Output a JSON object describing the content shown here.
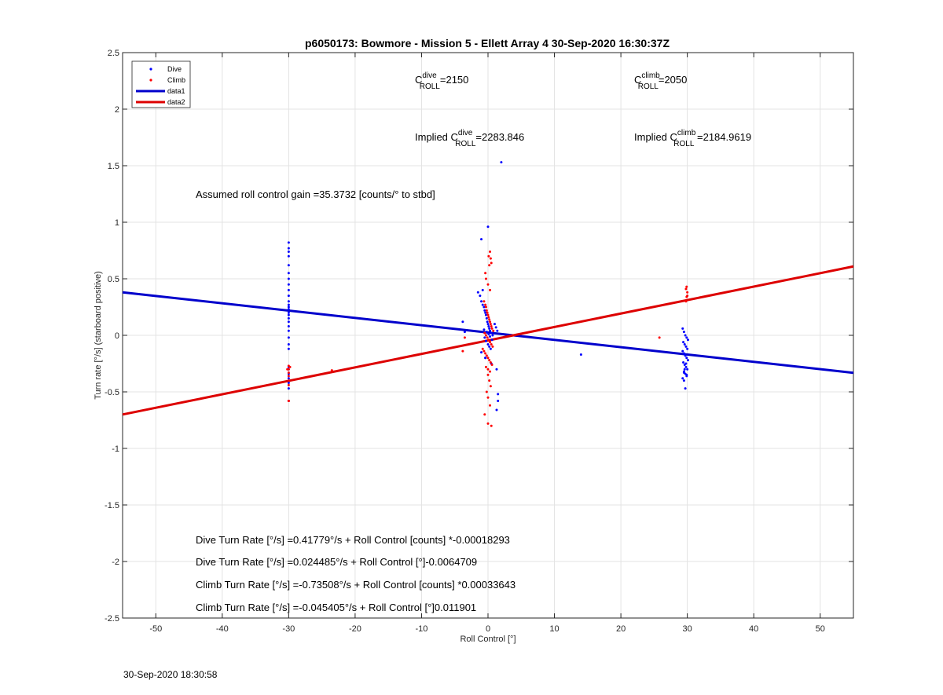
{
  "chart_data": {
    "type": "scatter",
    "title": "p6050173: Bowmore - Mission 5 - Ellett Array 4 30-Sep-2020 16:30:37Z",
    "xlabel": "Roll Control [°]",
    "ylabel": "Turn rate [°/s] (starboard positive)",
    "xlim": [
      -55,
      55
    ],
    "ylim": [
      -2.5,
      2.5
    ],
    "xticks": [
      -50,
      -40,
      -30,
      -20,
      -10,
      0,
      10,
      20,
      30,
      40,
      50
    ],
    "yticks": [
      -2.5,
      -2,
      -1.5,
      -1,
      -0.5,
      0,
      0.5,
      1,
      1.5,
      2,
      2.5
    ],
    "grid": true,
    "legend_position": "top-left",
    "legend": [
      "Dive",
      "Climb",
      "data1",
      "data2"
    ],
    "colors": {
      "dive": "#0000ff",
      "climb": "#ff0000",
      "data1": "#0000cc",
      "data2": "#dd0000"
    },
    "series": [
      {
        "name": "Dive",
        "kind": "points",
        "x": [
          -30,
          -30,
          -30,
          -30,
          -30,
          -30,
          -30,
          -30,
          -30,
          -30,
          -30,
          -30,
          -30,
          -30,
          -30,
          -30,
          -30,
          -30,
          -30,
          -30,
          -30,
          -30,
          -30,
          -30,
          -30,
          -30,
          -30,
          -30,
          -30,
          -30,
          -1.5,
          -1.2,
          -1,
          -0.8,
          -0.6,
          -0.5,
          -0.4,
          -0.3,
          -0.2,
          -0.1,
          0,
          0.1,
          0.2,
          0.3,
          0.5,
          0.7,
          -0.5,
          -0.3,
          0,
          0.2,
          0.4,
          -0.6,
          -0.2,
          0.1,
          0.3,
          0.6,
          1,
          1.2,
          1.4,
          -1,
          -0.4,
          0.5,
          1.3,
          1.5,
          1.5,
          1.3,
          -0.8,
          -0.4,
          -3.8,
          -3.5,
          -1,
          0,
          2,
          14,
          29.3,
          29.5,
          29.7,
          29.9,
          30.1,
          29.4,
          29.6,
          29.8,
          30,
          29.3,
          29.5,
          29.7,
          29.9,
          30.1,
          29.4,
          29.6,
          29.8,
          30,
          29.5,
          29.7,
          29.9,
          29.3,
          29.5,
          29.7,
          29.9,
          29.6,
          29.8,
          29.5
        ],
        "y": [
          0.82,
          0.77,
          0.74,
          0.7,
          0.62,
          0.55,
          0.5,
          0.45,
          0.4,
          0.35,
          0.3,
          0.27,
          0.25,
          0.23,
          0.2,
          0.18,
          0.15,
          0.12,
          0.08,
          0.04,
          -0.02,
          -0.08,
          -0.12,
          -0.28,
          -0.3,
          -0.34,
          -0.38,
          -0.42,
          -0.47,
          -0.58,
          0.38,
          0.35,
          0.3,
          0.27,
          0.25,
          0.22,
          0.2,
          0.18,
          0.15,
          0.12,
          0.1,
          0.08,
          0.06,
          0.04,
          0.02,
          0,
          -0.02,
          -0.05,
          -0.08,
          -0.1,
          -0.12,
          0.05,
          0.03,
          0.01,
          -0.01,
          -0.04,
          0.1,
          0.07,
          0.04,
          -0.15,
          -0.2,
          -0.25,
          -0.3,
          -0.52,
          -0.58,
          -0.66,
          0.4,
          -0.2,
          0.12,
          0.03,
          0.85,
          0.96,
          1.53,
          -0.17,
          0.06,
          0.03,
          0,
          -0.02,
          -0.04,
          -0.06,
          -0.08,
          -0.1,
          -0.12,
          -0.14,
          -0.16,
          -0.18,
          -0.2,
          -0.22,
          -0.24,
          -0.26,
          -0.28,
          -0.3,
          -0.32,
          -0.34,
          -0.36,
          -0.38,
          -0.4,
          -0.47,
          -0.35,
          -0.3,
          -0.25,
          -0.33
        ]
      },
      {
        "name": "Climb",
        "kind": "points",
        "x": [
          -30,
          -30,
          -30,
          -30,
          -30,
          -30,
          -30,
          -30,
          -29.8,
          -30.2,
          -23.5,
          -0.6,
          -0.4,
          -0.3,
          -0.2,
          -0.1,
          0,
          0.1,
          0.2,
          0.3,
          0.4,
          0.5,
          0.6,
          0.8,
          -0.5,
          -0.3,
          -0.1,
          0.1,
          0.3,
          0.5,
          0.7,
          -0.8,
          -0.6,
          -0.4,
          -0.2,
          0,
          0.2,
          0.4,
          0.6,
          -0.3,
          0,
          0.3,
          0,
          0.2,
          0.4,
          -0.2,
          0,
          0.3,
          -0.5,
          0,
          0.5,
          -0.3,
          0,
          0.3,
          -0.4,
          0.2,
          0.1,
          0.3,
          0.4,
          0.5,
          -3.5,
          -3.8,
          25.8,
          29.8,
          29.9,
          30,
          29.8,
          29.9,
          30
        ],
        "y": [
          -0.27,
          -0.3,
          -0.33,
          -0.36,
          -0.4,
          -0.44,
          -0.58,
          -0.58,
          -0.28,
          -0.3,
          -0.31,
          0.3,
          0.27,
          0.25,
          0.22,
          0.2,
          0.18,
          0.16,
          0.14,
          0.12,
          0.1,
          0.08,
          0.06,
          0.04,
          0.02,
          0,
          -0.02,
          -0.04,
          -0.06,
          -0.08,
          -0.1,
          -0.12,
          -0.14,
          -0.16,
          -0.18,
          -0.2,
          -0.22,
          -0.24,
          -0.26,
          -0.28,
          -0.3,
          -0.32,
          -0.35,
          -0.4,
          -0.45,
          -0.5,
          -0.55,
          -0.62,
          -0.7,
          -0.78,
          -0.8,
          0.5,
          0.45,
          0.4,
          0.55,
          0.62,
          0.7,
          0.74,
          0.68,
          0.64,
          -0.02,
          -0.14,
          -0.02,
          0.3,
          0.34,
          0.38,
          0.41,
          0.43,
          0.35
        ]
      },
      {
        "name": "data1",
        "kind": "line",
        "slope": -0.0064709,
        "intercept": 0.024485,
        "x": [
          -55,
          55
        ]
      },
      {
        "name": "data2",
        "kind": "line",
        "slope": 0.011901,
        "intercept": -0.045405,
        "x": [
          -55,
          55
        ]
      }
    ],
    "annotations": {
      "c_dive": {
        "base": "C",
        "sup": "dive",
        "sub": "ROLL",
        "value": "=2150"
      },
      "c_climb": {
        "base": "C",
        "sup": "climb",
        "sub": "ROLL",
        "value": "=2050"
      },
      "implied_dive": {
        "prefix": "Implied ",
        "base": "C",
        "sup": "dive",
        "sub": "ROLL",
        "value": "=2283.846"
      },
      "implied_climb": {
        "prefix": "Implied ",
        "base": "C",
        "sup": "climb",
        "sub": "ROLL",
        "value": " =2184.9619"
      },
      "gain": "Assumed roll control gain =35.3732 [counts/° to stbd]",
      "eq1": "Dive Turn Rate [°/s] =0.41779°/s + Roll Control [counts] *-0.00018293",
      "eq2": "Dive Turn Rate [°/s] =0.024485°/s + Roll Control [°]-0.0064709",
      "eq3": "Climb Turn Rate [°/s] =-0.73508°/s + Roll Control [counts] *0.00033643",
      "eq4": "Climb Turn Rate [°/s] =-0.045405°/s + Roll Control [°]0.011901"
    }
  },
  "footer": {
    "timestamp": "30-Sep-2020 18:30:58"
  }
}
